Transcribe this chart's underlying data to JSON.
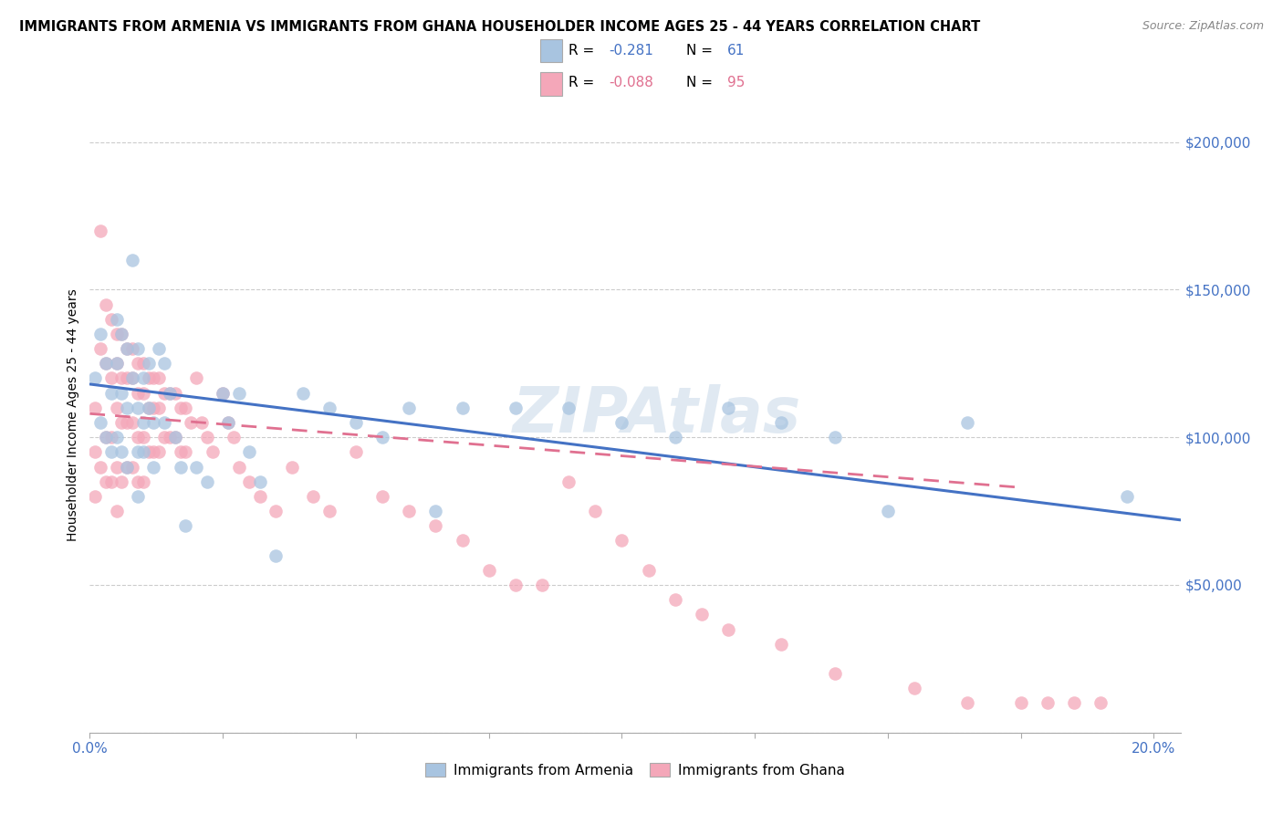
{
  "title": "IMMIGRANTS FROM ARMENIA VS IMMIGRANTS FROM GHANA HOUSEHOLDER INCOME AGES 25 - 44 YEARS CORRELATION CHART",
  "source": "Source: ZipAtlas.com",
  "ylabel": "Householder Income Ages 25 - 44 years",
  "xlim": [
    0,
    0.205
  ],
  "ylim": [
    0,
    215000
  ],
  "xticks": [
    0.0,
    0.025,
    0.05,
    0.075,
    0.1,
    0.125,
    0.15,
    0.175,
    0.2
  ],
  "xticklabels": [
    "0.0%",
    "",
    "",
    "",
    "",
    "",
    "",
    "",
    "20.0%"
  ],
  "yticks": [
    0,
    50000,
    100000,
    150000,
    200000
  ],
  "yticklabels": [
    "",
    "$50,000",
    "$100,000",
    "$150,000",
    "$200,000"
  ],
  "armenia_color": "#a8c4e0",
  "ghana_color": "#f4a7b9",
  "armenia_line_color": "#4472c4",
  "ghana_line_color": "#e07090",
  "watermark": "ZIPAtlas",
  "armenia_scatter_x": [
    0.001,
    0.002,
    0.002,
    0.003,
    0.003,
    0.004,
    0.004,
    0.005,
    0.005,
    0.005,
    0.006,
    0.006,
    0.006,
    0.007,
    0.007,
    0.007,
    0.008,
    0.008,
    0.009,
    0.009,
    0.009,
    0.009,
    0.01,
    0.01,
    0.01,
    0.011,
    0.011,
    0.012,
    0.012,
    0.013,
    0.014,
    0.014,
    0.015,
    0.016,
    0.017,
    0.018,
    0.02,
    0.022,
    0.025,
    0.026,
    0.028,
    0.03,
    0.032,
    0.035,
    0.04,
    0.045,
    0.05,
    0.055,
    0.06,
    0.065,
    0.07,
    0.08,
    0.09,
    0.1,
    0.11,
    0.12,
    0.13,
    0.14,
    0.15,
    0.165,
    0.195
  ],
  "armenia_scatter_y": [
    120000,
    135000,
    105000,
    125000,
    100000,
    115000,
    95000,
    140000,
    125000,
    100000,
    135000,
    115000,
    95000,
    130000,
    110000,
    90000,
    160000,
    120000,
    130000,
    110000,
    95000,
    80000,
    120000,
    105000,
    95000,
    125000,
    110000,
    105000,
    90000,
    130000,
    125000,
    105000,
    115000,
    100000,
    90000,
    70000,
    90000,
    85000,
    115000,
    105000,
    115000,
    95000,
    85000,
    60000,
    115000,
    110000,
    105000,
    100000,
    110000,
    75000,
    110000,
    110000,
    110000,
    105000,
    100000,
    110000,
    105000,
    100000,
    75000,
    105000,
    80000
  ],
  "ghana_scatter_x": [
    0.001,
    0.001,
    0.001,
    0.002,
    0.002,
    0.002,
    0.003,
    0.003,
    0.003,
    0.003,
    0.004,
    0.004,
    0.004,
    0.004,
    0.005,
    0.005,
    0.005,
    0.005,
    0.005,
    0.006,
    0.006,
    0.006,
    0.006,
    0.007,
    0.007,
    0.007,
    0.007,
    0.008,
    0.008,
    0.008,
    0.008,
    0.009,
    0.009,
    0.009,
    0.009,
    0.01,
    0.01,
    0.01,
    0.01,
    0.011,
    0.011,
    0.011,
    0.012,
    0.012,
    0.012,
    0.013,
    0.013,
    0.013,
    0.014,
    0.014,
    0.015,
    0.015,
    0.016,
    0.016,
    0.017,
    0.017,
    0.018,
    0.018,
    0.019,
    0.02,
    0.021,
    0.022,
    0.023,
    0.025,
    0.026,
    0.027,
    0.028,
    0.03,
    0.032,
    0.035,
    0.038,
    0.042,
    0.045,
    0.05,
    0.055,
    0.06,
    0.065,
    0.07,
    0.075,
    0.08,
    0.085,
    0.09,
    0.095,
    0.1,
    0.105,
    0.11,
    0.115,
    0.12,
    0.13,
    0.14,
    0.155,
    0.165,
    0.175,
    0.18,
    0.185,
    0.19
  ],
  "ghana_scatter_y": [
    110000,
    95000,
    80000,
    170000,
    130000,
    90000,
    145000,
    125000,
    100000,
    85000,
    140000,
    120000,
    100000,
    85000,
    135000,
    125000,
    110000,
    90000,
    75000,
    135000,
    120000,
    105000,
    85000,
    130000,
    120000,
    105000,
    90000,
    130000,
    120000,
    105000,
    90000,
    125000,
    115000,
    100000,
    85000,
    125000,
    115000,
    100000,
    85000,
    120000,
    110000,
    95000,
    120000,
    110000,
    95000,
    120000,
    110000,
    95000,
    115000,
    100000,
    115000,
    100000,
    115000,
    100000,
    110000,
    95000,
    110000,
    95000,
    105000,
    120000,
    105000,
    100000,
    95000,
    115000,
    105000,
    100000,
    90000,
    85000,
    80000,
    75000,
    90000,
    80000,
    75000,
    95000,
    80000,
    75000,
    70000,
    65000,
    55000,
    50000,
    50000,
    85000,
    75000,
    65000,
    55000,
    45000,
    40000,
    35000,
    30000,
    20000,
    15000,
    10000,
    10000,
    10000,
    10000,
    10000
  ],
  "armenia_line_x0": 0.0,
  "armenia_line_x1": 0.205,
  "armenia_line_y0": 118000,
  "armenia_line_y1": 72000,
  "ghana_line_x0": 0.0,
  "ghana_line_x1": 0.175,
  "ghana_line_y0": 108000,
  "ghana_line_y1": 83000
}
